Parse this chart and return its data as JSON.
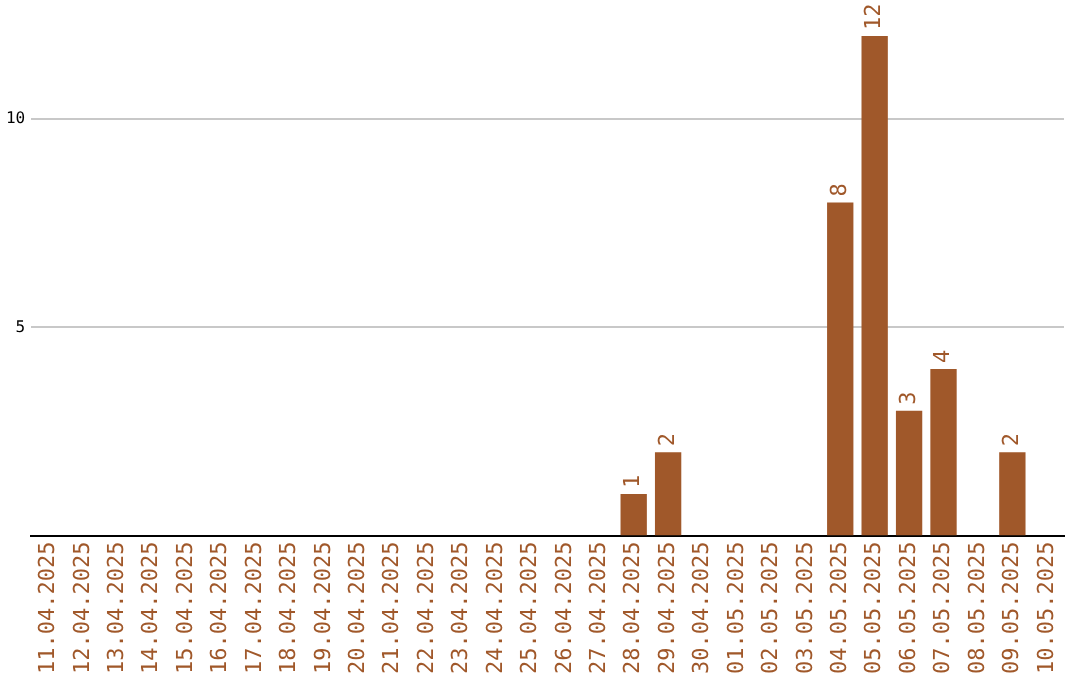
{
  "chart_data": {
    "type": "bar",
    "categories": [
      "11.04.2025",
      "12.04.2025",
      "13.04.2025",
      "14.04.2025",
      "15.04.2025",
      "16.04.2025",
      "17.04.2025",
      "18.04.2025",
      "19.04.2025",
      "20.04.2025",
      "21.04.2025",
      "22.04.2025",
      "23.04.2025",
      "24.04.2025",
      "25.04.2025",
      "26.04.2025",
      "27.04.2025",
      "28.04.2025",
      "29.04.2025",
      "30.04.2025",
      "01.05.2025",
      "02.05.2025",
      "03.05.2025",
      "04.05.2025",
      "05.05.2025",
      "06.05.2025",
      "07.05.2025",
      "08.05.2025",
      "09.05.2025",
      "10.05.2025"
    ],
    "values": [
      0,
      0,
      0,
      0,
      0,
      0,
      0,
      0,
      0,
      0,
      0,
      0,
      0,
      0,
      0,
      0,
      0,
      1,
      2,
      0,
      0,
      0,
      0,
      8,
      12,
      3,
      4,
      0,
      2,
      0
    ],
    "value_labels": [
      null,
      null,
      null,
      null,
      null,
      null,
      null,
      null,
      null,
      null,
      null,
      null,
      null,
      null,
      null,
      null,
      null,
      "1",
      "2",
      null,
      null,
      null,
      null,
      "8",
      "12",
      "3",
      "4",
      null,
      "2",
      null
    ],
    "color": "#a0582a",
    "ylim": [
      0,
      12
    ],
    "yticks": [
      5,
      10
    ],
    "grid": "y"
  }
}
